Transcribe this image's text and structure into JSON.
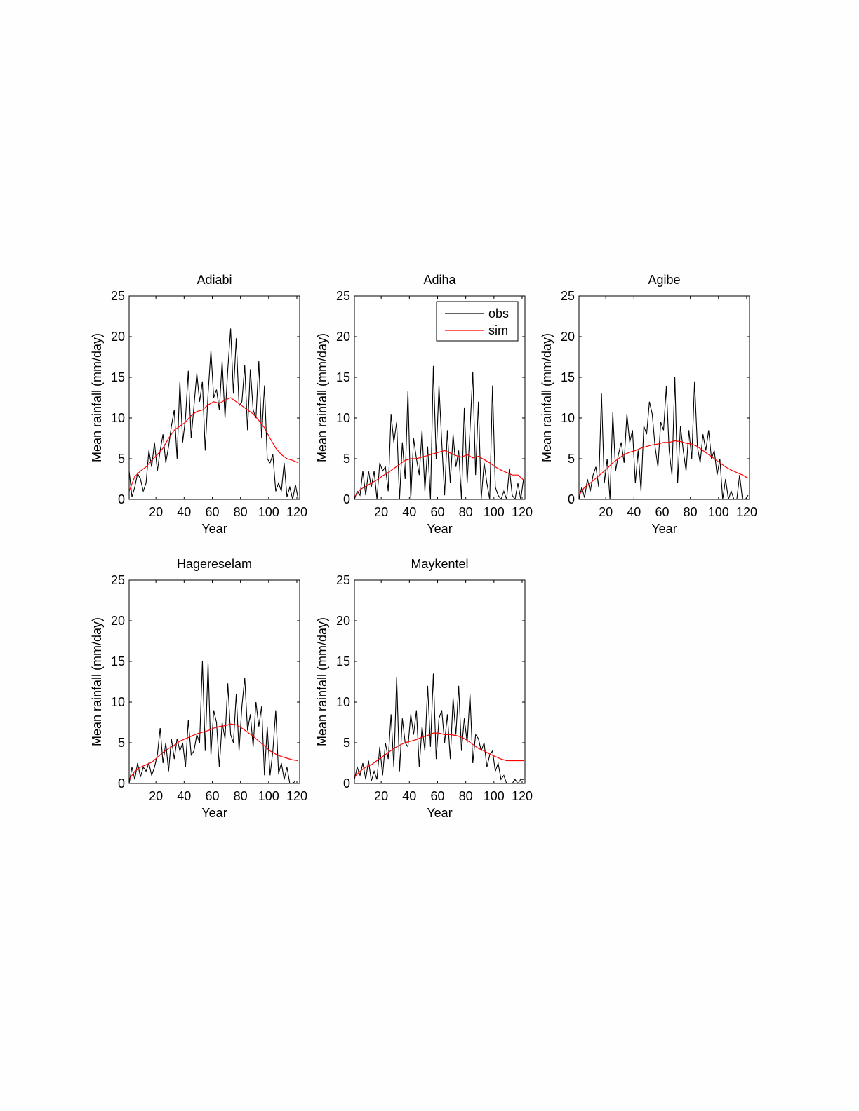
{
  "chart_data": [
    {
      "type": "line",
      "title": "Adiabi",
      "xlabel": "Year",
      "ylabel": "Mean rainfall (mm/day)",
      "xlim": [
        1,
        122
      ],
      "ylim": [
        0,
        25
      ],
      "xticks": [
        20,
        40,
        60,
        80,
        100,
        120
      ],
      "yticks": [
        0,
        5,
        10,
        15,
        20,
        25
      ],
      "legend": null,
      "series": [
        {
          "name": "obs",
          "color": "#000000",
          "x_start": 1,
          "x_step": 2,
          "values": [
            3.5,
            0.3,
            1.5,
            3.2,
            2.5,
            1.0,
            2.0,
            6.0,
            4.0,
            7.0,
            3.5,
            6.0,
            8.0,
            4.5,
            6.5,
            9.0,
            11.0,
            5.0,
            14.5,
            7.0,
            10.0,
            15.8,
            7.5,
            11.5,
            15.5,
            12.0,
            14.5,
            6.0,
            13.0,
            18.3,
            12.5,
            13.5,
            11.0,
            17.0,
            10.0,
            16.0,
            21.0,
            13.0,
            19.8,
            11.5,
            12.0,
            16.5,
            8.5,
            16.0,
            11.0,
            10.0,
            17.0,
            7.5,
            14.0,
            5.0,
            4.5,
            5.5,
            1.0,
            2.0,
            1.0,
            4.5,
            0.3,
            1.5,
            0.0,
            1.8,
            0.0
          ]
        },
        {
          "name": "sim",
          "color": "#ff0000",
          "x_start": 1,
          "x_step": 4,
          "values": [
            1.0,
            2.8,
            3.5,
            4.0,
            4.8,
            5.5,
            6.3,
            7.5,
            8.5,
            9.0,
            9.5,
            10.3,
            10.8,
            11.0,
            11.6,
            12.0,
            11.8,
            12.2,
            12.5,
            12.0,
            11.5,
            11.0,
            10.5,
            9.7,
            8.8,
            7.5,
            6.3,
            5.5,
            5.0,
            4.8,
            4.5
          ]
        }
      ]
    },
    {
      "type": "line",
      "title": "Adiha",
      "xlabel": "Year",
      "ylabel": "Mean rainfall (mm/day)",
      "xlim": [
        1,
        122
      ],
      "ylim": [
        0,
        25
      ],
      "xticks": [
        20,
        40,
        60,
        80,
        100,
        120
      ],
      "yticks": [
        0,
        5,
        10,
        15,
        20,
        25
      ],
      "legend": {
        "placement": "top-right",
        "entries": [
          "obs",
          "sim"
        ]
      },
      "series": [
        {
          "name": "obs",
          "color": "#000000",
          "x_start": 1,
          "x_step": 2,
          "values": [
            0.0,
            1.0,
            0.5,
            3.5,
            0.5,
            3.5,
            1.5,
            3.5,
            0.0,
            4.5,
            3.5,
            4.0,
            1.0,
            10.5,
            7.0,
            9.5,
            0.0,
            7.0,
            2.5,
            13.3,
            0.0,
            7.5,
            5.0,
            3.0,
            8.5,
            1.0,
            6.5,
            0.0,
            16.4,
            5.0,
            14.0,
            7.0,
            0.5,
            8.5,
            2.0,
            8.0,
            4.0,
            6.0,
            0.0,
            11.3,
            2.0,
            8.5,
            15.7,
            3.0,
            12.0,
            0.0,
            4.5,
            2.0,
            0.0,
            14.0,
            1.5,
            0.5,
            0.0,
            1.0,
            0.0,
            3.8,
            0.5,
            0.0,
            2.0,
            0.0,
            2.5
          ]
        },
        {
          "name": "sim",
          "color": "#ff0000",
          "x_start": 1,
          "x_step": 4,
          "values": [
            0.3,
            1.2,
            1.6,
            2.0,
            2.4,
            2.9,
            3.3,
            3.8,
            4.3,
            4.8,
            5.0,
            5.0,
            5.2,
            5.4,
            5.6,
            5.8,
            6.0,
            5.7,
            5.4,
            5.2,
            5.5,
            5.1,
            5.3,
            4.9,
            4.5,
            4.0,
            3.6,
            3.3,
            3.0,
            3.0,
            2.4
          ]
        }
      ]
    },
    {
      "type": "line",
      "title": "Agibe",
      "xlabel": "Year",
      "ylabel": "Mean rainfall (mm/day)",
      "xlim": [
        1,
        122
      ],
      "ylim": [
        0,
        25
      ],
      "xticks": [
        20,
        40,
        60,
        80,
        100,
        120
      ],
      "yticks": [
        0,
        5,
        10,
        15,
        20,
        25
      ],
      "legend": null,
      "series": [
        {
          "name": "obs",
          "color": "#000000",
          "x_start": 1,
          "x_step": 2,
          "values": [
            0.0,
            1.5,
            0.2,
            2.5,
            1.0,
            3.0,
            4.0,
            1.5,
            13.0,
            2.0,
            5.0,
            0.0,
            10.7,
            3.5,
            5.5,
            7.0,
            4.5,
            10.5,
            7.0,
            8.5,
            2.0,
            6.0,
            1.0,
            9.0,
            8.0,
            12.0,
            10.5,
            6.5,
            4.0,
            9.5,
            8.5,
            13.9,
            6.0,
            3.0,
            15.0,
            2.0,
            9.0,
            6.0,
            3.5,
            8.5,
            5.0,
            14.5,
            6.5,
            4.5,
            8.0,
            6.0,
            8.5,
            5.0,
            6.0,
            3.0,
            5.0,
            0.0,
            2.5,
            0.0,
            1.0,
            0.0,
            0.0,
            3.0,
            0.0,
            0.0,
            0.5
          ]
        },
        {
          "name": "sim",
          "color": "#ff0000",
          "x_start": 1,
          "x_step": 4,
          "values": [
            0.5,
            1.5,
            2.0,
            2.6,
            3.2,
            3.8,
            4.5,
            5.0,
            5.5,
            5.8,
            6.0,
            6.3,
            6.5,
            6.7,
            6.8,
            7.0,
            7.0,
            7.2,
            7.1,
            6.9,
            6.8,
            6.5,
            6.0,
            5.5,
            5.0,
            4.5,
            4.0,
            3.6,
            3.3,
            3.0,
            2.6
          ]
        }
      ]
    },
    {
      "type": "line",
      "title": "Hagereselam",
      "xlabel": "Year",
      "ylabel": "Mean rainfall (mm/day)",
      "xlim": [
        1,
        122
      ],
      "ylim": [
        0,
        25
      ],
      "xticks": [
        20,
        40,
        60,
        80,
        100,
        120
      ],
      "yticks": [
        0,
        5,
        10,
        15,
        20,
        25
      ],
      "legend": null,
      "series": [
        {
          "name": "obs",
          "color": "#000000",
          "x_start": 1,
          "x_step": 2,
          "values": [
            0.0,
            2.0,
            0.5,
            2.5,
            0.8,
            2.0,
            1.5,
            2.5,
            1.0,
            2.0,
            3.5,
            6.8,
            2.5,
            5.0,
            1.5,
            5.5,
            3.0,
            5.5,
            4.0,
            5.0,
            2.0,
            7.8,
            3.5,
            4.0,
            6.0,
            5.0,
            15.0,
            4.0,
            14.8,
            3.5,
            9.0,
            7.5,
            2.0,
            7.5,
            5.5,
            12.3,
            6.0,
            5.0,
            11.0,
            4.0,
            9.5,
            13.0,
            6.5,
            8.5,
            4.5,
            10.0,
            7.0,
            9.5,
            1.0,
            7.0,
            1.0,
            4.0,
            9.0,
            1.2,
            2.5,
            0.5,
            2.0,
            0.0,
            0.0,
            0.3,
            0.3
          ]
        },
        {
          "name": "sim",
          "color": "#ff0000",
          "x_start": 1,
          "x_step": 4,
          "values": [
            0.5,
            1.5,
            2.0,
            2.3,
            2.6,
            3.2,
            3.8,
            4.3,
            4.7,
            5.2,
            5.5,
            5.8,
            6.1,
            6.3,
            6.5,
            6.8,
            7.0,
            7.1,
            7.3,
            7.2,
            6.8,
            6.3,
            5.8,
            5.2,
            4.6,
            4.0,
            3.6,
            3.3,
            3.1,
            2.9,
            2.8
          ]
        }
      ]
    },
    {
      "type": "line",
      "title": "Maykentel",
      "xlabel": "Year",
      "ylabel": "Mean rainfall (mm/day)",
      "xlim": [
        1,
        122
      ],
      "ylim": [
        0,
        25
      ],
      "xticks": [
        20,
        40,
        60,
        80,
        100,
        120
      ],
      "yticks": [
        0,
        5,
        10,
        15,
        20,
        25
      ],
      "legend": null,
      "series": [
        {
          "name": "obs",
          "color": "#000000",
          "x_start": 1,
          "x_step": 2,
          "values": [
            0.5,
            2.0,
            1.0,
            2.5,
            0.5,
            2.8,
            0.3,
            1.5,
            0.5,
            4.5,
            1.0,
            5.0,
            3.0,
            8.5,
            2.0,
            13.1,
            1.5,
            8.0,
            5.0,
            4.5,
            8.5,
            6.0,
            9.0,
            2.0,
            7.0,
            4.0,
            12.0,
            4.5,
            13.5,
            3.0,
            8.0,
            9.0,
            5.0,
            8.5,
            3.0,
            10.5,
            6.0,
            12.0,
            4.0,
            8.0,
            5.0,
            11.0,
            2.5,
            6.0,
            5.5,
            4.0,
            5.0,
            2.0,
            3.5,
            4.0,
            1.5,
            2.5,
            0.5,
            1.0,
            0.0,
            0.0,
            0.0,
            0.5,
            0.0,
            0.5,
            0.5
          ]
        },
        {
          "name": "sim",
          "color": "#ff0000",
          "x_start": 1,
          "x_step": 4,
          "values": [
            0.8,
            1.5,
            2.0,
            2.3,
            2.8,
            3.3,
            3.8,
            4.3,
            4.7,
            5.0,
            5.2,
            5.4,
            5.7,
            5.9,
            6.2,
            6.2,
            6.0,
            6.0,
            5.9,
            5.7,
            5.3,
            4.8,
            4.3,
            4.0,
            3.6,
            3.3,
            3.0,
            2.8,
            2.8,
            2.8,
            2.8
          ]
        }
      ]
    }
  ]
}
